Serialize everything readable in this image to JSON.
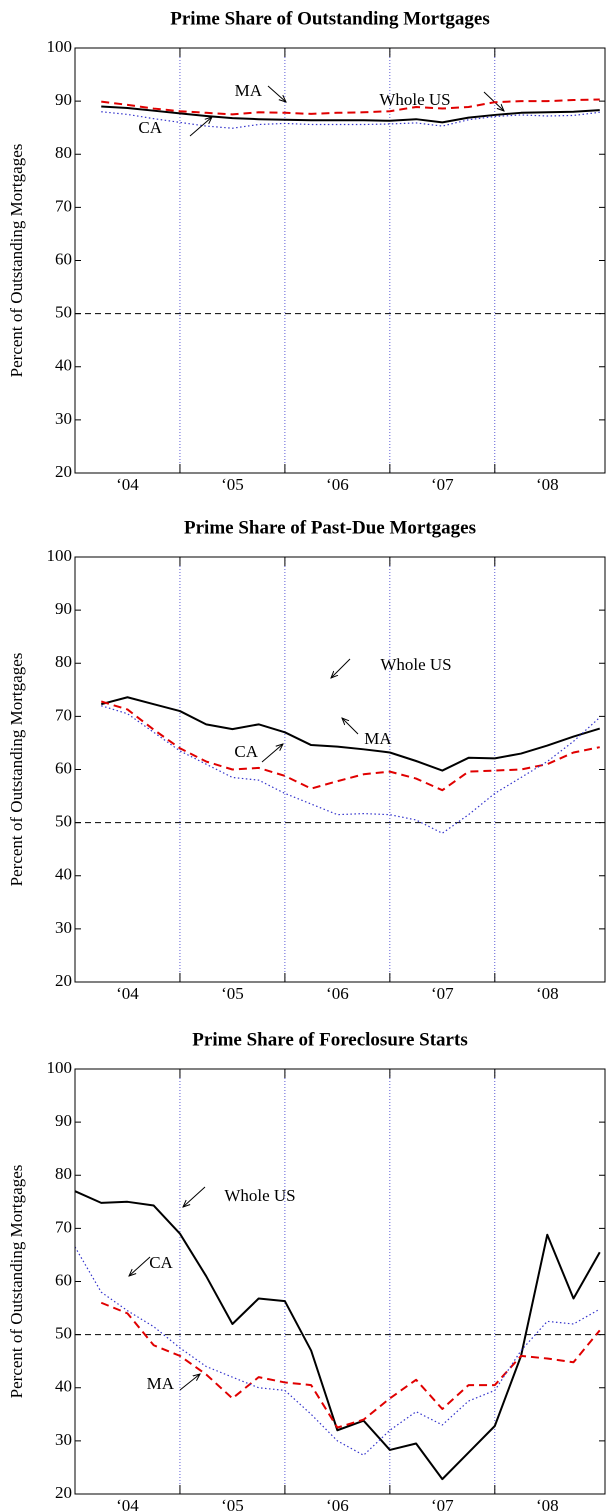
{
  "chart_data": [
    {
      "type": "line",
      "title": "Prime Share of Outstanding Mortgages",
      "ylabel": "Percent of Outstanding Mortgages",
      "x": [
        2004,
        2004.25,
        2004.5,
        2004.75,
        2005,
        2005.25,
        2005.5,
        2005.75,
        2006,
        2006.25,
        2006.5,
        2006.75,
        2007,
        2007.25,
        2007.5,
        2007.75,
        2008,
        2008.25,
        2008.5,
        2008.75,
        2009
      ],
      "xlim": [
        2004,
        2009.05
      ],
      "xticks": [
        {
          "value": 2004.5,
          "label": "‘04"
        },
        {
          "value": 2005.5,
          "label": "‘05"
        },
        {
          "value": 2006.5,
          "label": "‘06"
        },
        {
          "value": 2007.5,
          "label": "‘07"
        },
        {
          "value": 2008.5,
          "label": "‘08"
        }
      ],
      "vlines": [
        2005,
        2006,
        2007,
        2008
      ],
      "hline": 50,
      "ylim": [
        20,
        100
      ],
      "yticks": [
        20,
        30,
        40,
        50,
        60,
        70,
        80,
        90,
        100
      ],
      "series": [
        {
          "name": "Whole US",
          "color": "#000000",
          "style": "solid",
          "values": [
            null,
            89,
            88.7,
            88.2,
            87.7,
            87.2,
            86.8,
            86.6,
            86.5,
            86.4,
            86.4,
            86.4,
            86.3,
            86.6,
            86,
            86.9,
            87.4,
            87.8,
            87.9,
            88,
            88.3
          ]
        },
        {
          "name": "MA",
          "color": "#e00000",
          "style": "dashed",
          "values": [
            null,
            89.9,
            89.3,
            88.6,
            88.1,
            87.8,
            87.5,
            87.9,
            87.8,
            87.6,
            87.8,
            87.9,
            88.1,
            88.9,
            88.6,
            88.9,
            89.8,
            90,
            90,
            90.2,
            90.3
          ]
        },
        {
          "name": "CA",
          "color": "#3333cc",
          "style": "dotted",
          "values": [
            null,
            88,
            87.5,
            86.7,
            86,
            85.3,
            84.9,
            85.6,
            85.8,
            85.6,
            85.6,
            85.6,
            85.7,
            85.9,
            85.3,
            86.5,
            87.1,
            87.4,
            87.2,
            87.3,
            87.9
          ]
        }
      ]
    },
    {
      "type": "line",
      "title": "Prime Share of Past-Due Mortgages",
      "ylabel": "Percent of Outstanding Mortgages",
      "x": [
        2004,
        2004.25,
        2004.5,
        2004.75,
        2005,
        2005.25,
        2005.5,
        2005.75,
        2006,
        2006.25,
        2006.5,
        2006.75,
        2007,
        2007.25,
        2007.5,
        2007.75,
        2008,
        2008.25,
        2008.5,
        2008.75,
        2009
      ],
      "xlim": [
        2004,
        2009.05
      ],
      "xticks": [
        {
          "value": 2004.5,
          "label": "‘04"
        },
        {
          "value": 2005.5,
          "label": "‘05"
        },
        {
          "value": 2006.5,
          "label": "‘06"
        },
        {
          "value": 2007.5,
          "label": "‘07"
        },
        {
          "value": 2008.5,
          "label": "‘08"
        }
      ],
      "vlines": [
        2005,
        2006,
        2007,
        2008
      ],
      "hline": 50,
      "ylim": [
        20,
        100
      ],
      "yticks": [
        20,
        30,
        40,
        50,
        60,
        70,
        80,
        90,
        100
      ],
      "series": [
        {
          "name": "Whole US",
          "color": "#000000",
          "style": "solid",
          "values": [
            null,
            72.3,
            73.6,
            72.3,
            71,
            68.5,
            67.6,
            68.5,
            67,
            64.6,
            64.3,
            63.8,
            63.2,
            61.6,
            59.8,
            62.2,
            62.1,
            63,
            64.5,
            66.2,
            67.7
          ]
        },
        {
          "name": "MA",
          "color": "#e00000",
          "style": "dashed",
          "values": [
            null,
            72.8,
            71.3,
            67.5,
            64,
            61.5,
            60,
            60.3,
            58.8,
            56.4,
            57.8,
            59.1,
            59.6,
            58.3,
            56.1,
            59.6,
            59.8,
            60,
            61,
            63.2,
            64.2
          ]
        },
        {
          "name": "CA",
          "color": "#3333cc",
          "style": "dotted",
          "values": [
            null,
            72,
            70.5,
            67,
            63.5,
            61,
            58.5,
            58,
            55.5,
            53.5,
            51.5,
            51.7,
            51.5,
            50.5,
            48,
            51.5,
            55.5,
            58.5,
            61.5,
            65.3,
            69.8
          ]
        }
      ]
    },
    {
      "type": "line",
      "title": "Prime Share of Foreclosure Starts",
      "ylabel": "Percent of Outstanding Mortgages",
      "x": [
        2004,
        2004.25,
        2004.5,
        2004.75,
        2005,
        2005.25,
        2005.5,
        2005.75,
        2006,
        2006.25,
        2006.5,
        2006.75,
        2007,
        2007.25,
        2007.5,
        2007.75,
        2008,
        2008.25,
        2008.5,
        2008.75,
        2009
      ],
      "xlim": [
        2004,
        2009.05
      ],
      "xticks": [
        {
          "value": 2004.5,
          "label": "‘04"
        },
        {
          "value": 2005.5,
          "label": "‘05"
        },
        {
          "value": 2006.5,
          "label": "‘06"
        },
        {
          "value": 2007.5,
          "label": "‘07"
        },
        {
          "value": 2008.5,
          "label": "‘08"
        }
      ],
      "vlines": [
        2005,
        2006,
        2007,
        2008
      ],
      "hline": 50,
      "ylim": [
        20,
        100
      ],
      "yticks": [
        20,
        30,
        40,
        50,
        60,
        70,
        80,
        90,
        100
      ],
      "series": [
        {
          "name": "Whole US",
          "color": "#000000",
          "style": "solid",
          "values": [
            77,
            74.8,
            75,
            74.3,
            69,
            61,
            52,
            56.8,
            56.3,
            47,
            32,
            33.8,
            28.3,
            29.5,
            22.8,
            27.8,
            32.8,
            46,
            68.8,
            56.8,
            65.5
          ]
        },
        {
          "name": "MA",
          "color": "#e00000",
          "style": "dashed",
          "values": [
            null,
            56,
            54,
            48,
            46,
            42.5,
            38,
            42,
            41,
            40.5,
            32.5,
            34,
            38,
            41.5,
            36,
            40.5,
            40.5,
            46,
            45.5,
            44.8,
            50.8
          ]
        },
        {
          "name": "CA",
          "color": "#3333cc",
          "style": "dotted",
          "values": [
            66.5,
            58,
            54.5,
            51.5,
            47.5,
            44,
            42,
            40,
            39.5,
            35,
            30,
            27.3,
            32,
            35.5,
            33,
            37.5,
            39.5,
            47,
            52.5,
            52,
            54.8
          ]
        }
      ]
    }
  ]
}
